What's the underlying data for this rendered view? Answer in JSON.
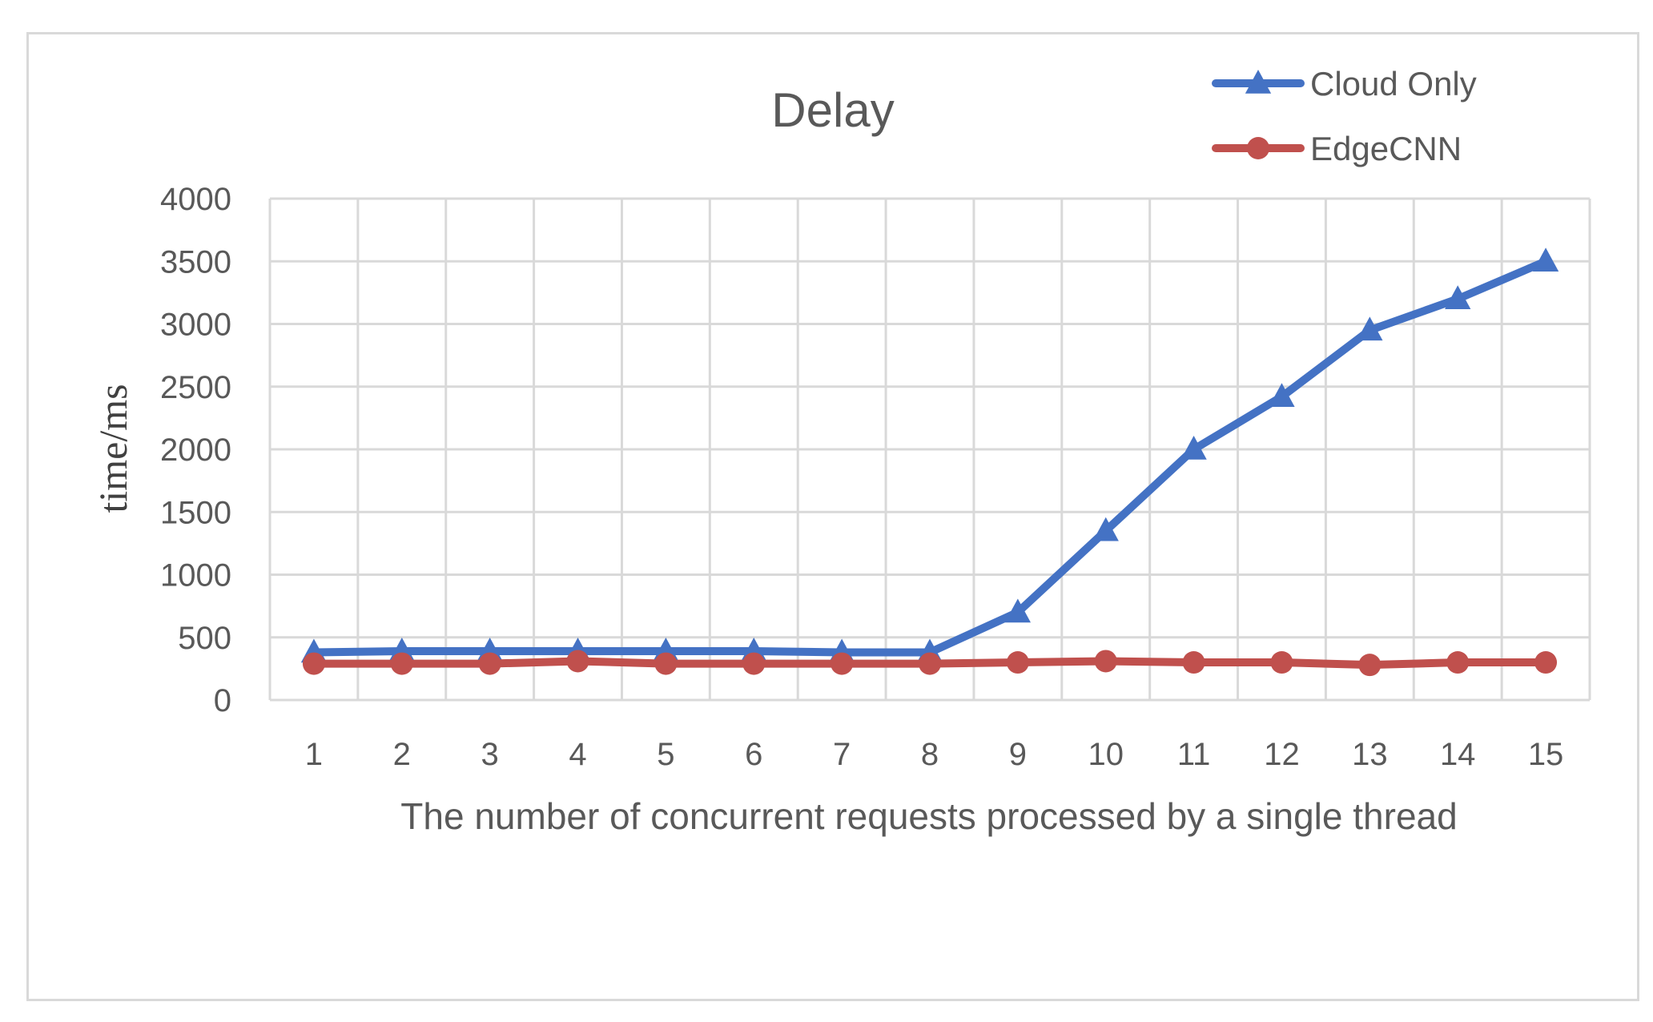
{
  "chart_data": {
    "type": "line",
    "title": "Delay",
    "xlabel": "The number of concurrent requests processed by a single thread",
    "ylabel": "time/ms",
    "categories": [
      "1",
      "2",
      "3",
      "4",
      "5",
      "6",
      "7",
      "8",
      "9",
      "10",
      "11",
      "12",
      "13",
      "14",
      "15"
    ],
    "ylim": [
      0,
      4000
    ],
    "yticks": [
      0,
      500,
      1000,
      1500,
      2000,
      2500,
      3000,
      3500,
      4000
    ],
    "grid": true,
    "legend_position": "top-right",
    "series": [
      {
        "name": "Cloud Only",
        "color": "#4472c4",
        "marker": "triangle",
        "values": [
          380,
          390,
          390,
          390,
          390,
          390,
          380,
          380,
          700,
          1350,
          2000,
          2420,
          2950,
          3200,
          3500
        ]
      },
      {
        "name": "EdgeCNN",
        "color": "#c0504d",
        "marker": "circle",
        "values": [
          290,
          290,
          290,
          310,
          290,
          290,
          290,
          290,
          300,
          310,
          300,
          300,
          280,
          300,
          300
        ]
      }
    ]
  }
}
